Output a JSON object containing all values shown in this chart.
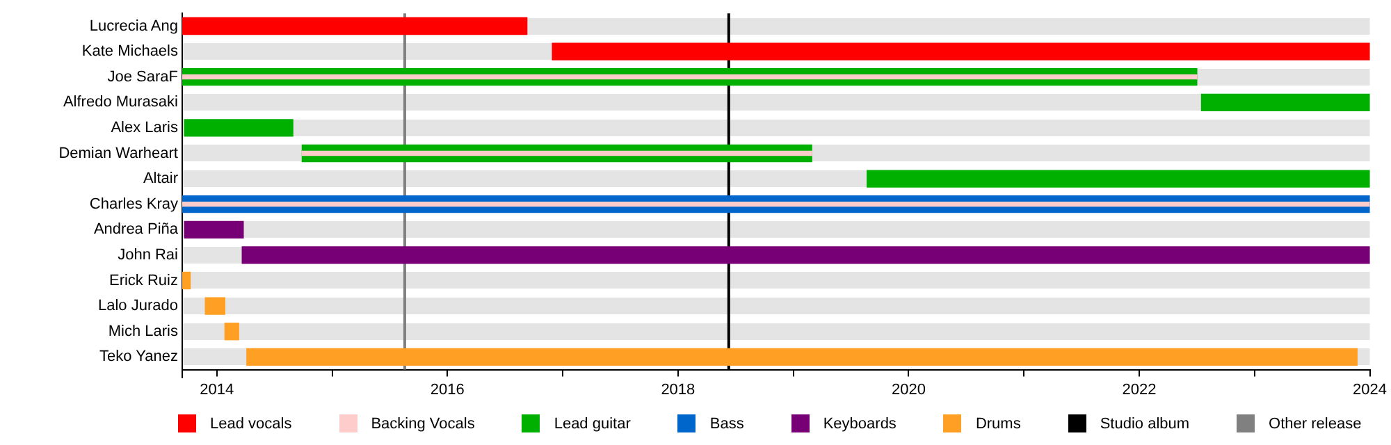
{
  "chart_data": {
    "type": "bar",
    "orientation": "horizontal",
    "grid": "y",
    "legend": "bottom",
    "categories": [
      "Lucrecia Ang",
      "Kate Michaels",
      "Joe SaraF",
      "Alfredo Murasaki",
      "Alex Laris",
      "Demian Warheart",
      "Altair",
      "Charles Kray",
      "Andrea Piña",
      "John Rai",
      "Erick Ruiz",
      "Lalo Jurado",
      "Mich Laris",
      "Teko Yanez"
    ],
    "xlim": [
      2013.7,
      2024
    ],
    "xticks": [
      2014,
      {
        "value": 2015,
        "label": null
      },
      2016,
      {
        "value": 2017,
        "label": null
      },
      2018,
      {
        "value": 2019,
        "label": null
      },
      2020,
      {
        "value": 2021,
        "label": null
      },
      2022,
      {
        "value": 2023,
        "label": null
      },
      2024
    ],
    "series": [
      {
        "name": "Lead vocals",
        "color": "#ff0000",
        "base": [
          2013.7,
          2016.91,
          null,
          null,
          null,
          null,
          null,
          null,
          null,
          null,
          null,
          null,
          null,
          null
        ],
        "values": [
          2.99,
          7.09,
          null,
          null,
          null,
          null,
          null,
          null,
          null,
          null,
          null,
          null,
          null,
          null
        ]
      },
      {
        "name": "Backing Vocals",
        "color": "#ffcccc",
        "base": [
          null,
          null,
          2013.7,
          null,
          null,
          2014.74,
          null,
          2013.7,
          null,
          null,
          null,
          null,
          null,
          null
        ],
        "values": [
          null,
          null,
          8.8,
          null,
          null,
          4.42,
          null,
          10.3,
          null,
          null,
          null,
          null,
          null,
          null
        ]
      },
      {
        "name": "Lead guitar",
        "color": "#00b000",
        "base": [
          null,
          null,
          2013.7,
          2022.54,
          2013.72,
          2014.74,
          2019.64,
          null,
          null,
          null,
          null,
          null,
          null,
          null
        ],
        "values": [
          null,
          null,
          8.8,
          1.46,
          0.94,
          4.42,
          4.36,
          null,
          null,
          null,
          null,
          null,
          null,
          null
        ]
      },
      {
        "name": "Bass",
        "color": "#0066cc",
        "base": [
          null,
          null,
          null,
          null,
          null,
          null,
          null,
          2013.7,
          null,
          null,
          null,
          null,
          null,
          null
        ],
        "values": [
          null,
          null,
          null,
          null,
          null,
          null,
          null,
          10.3,
          null,
          null,
          null,
          null,
          null,
          null
        ]
      },
      {
        "name": "Keyboards",
        "color": "#770077",
        "base": [
          null,
          null,
          null,
          null,
          null,
          null,
          null,
          null,
          2013.72,
          2014.22,
          null,
          null,
          null,
          null
        ],
        "values": [
          null,
          null,
          null,
          null,
          null,
          null,
          null,
          null,
          0.51,
          9.78,
          null,
          null,
          null,
          null
        ]
      },
      {
        "name": "Drums",
        "color": "#ffa024",
        "base": [
          null,
          null,
          null,
          null,
          null,
          null,
          null,
          null,
          null,
          null,
          2013.7,
          2013.9,
          2014.07,
          2014.26
        ],
        "values": [
          null,
          null,
          null,
          null,
          null,
          null,
          null,
          null,
          null,
          null,
          0.07,
          0.17,
          0.12,
          9.63
        ]
      }
    ],
    "ref_lines": [
      {
        "axis": "x",
        "value": 2018.44,
        "label": "Studio album",
        "color": "#000000"
      },
      {
        "axis": "x",
        "value": 2015.63,
        "label": "Other release",
        "color": "#808080"
      }
    ]
  }
}
